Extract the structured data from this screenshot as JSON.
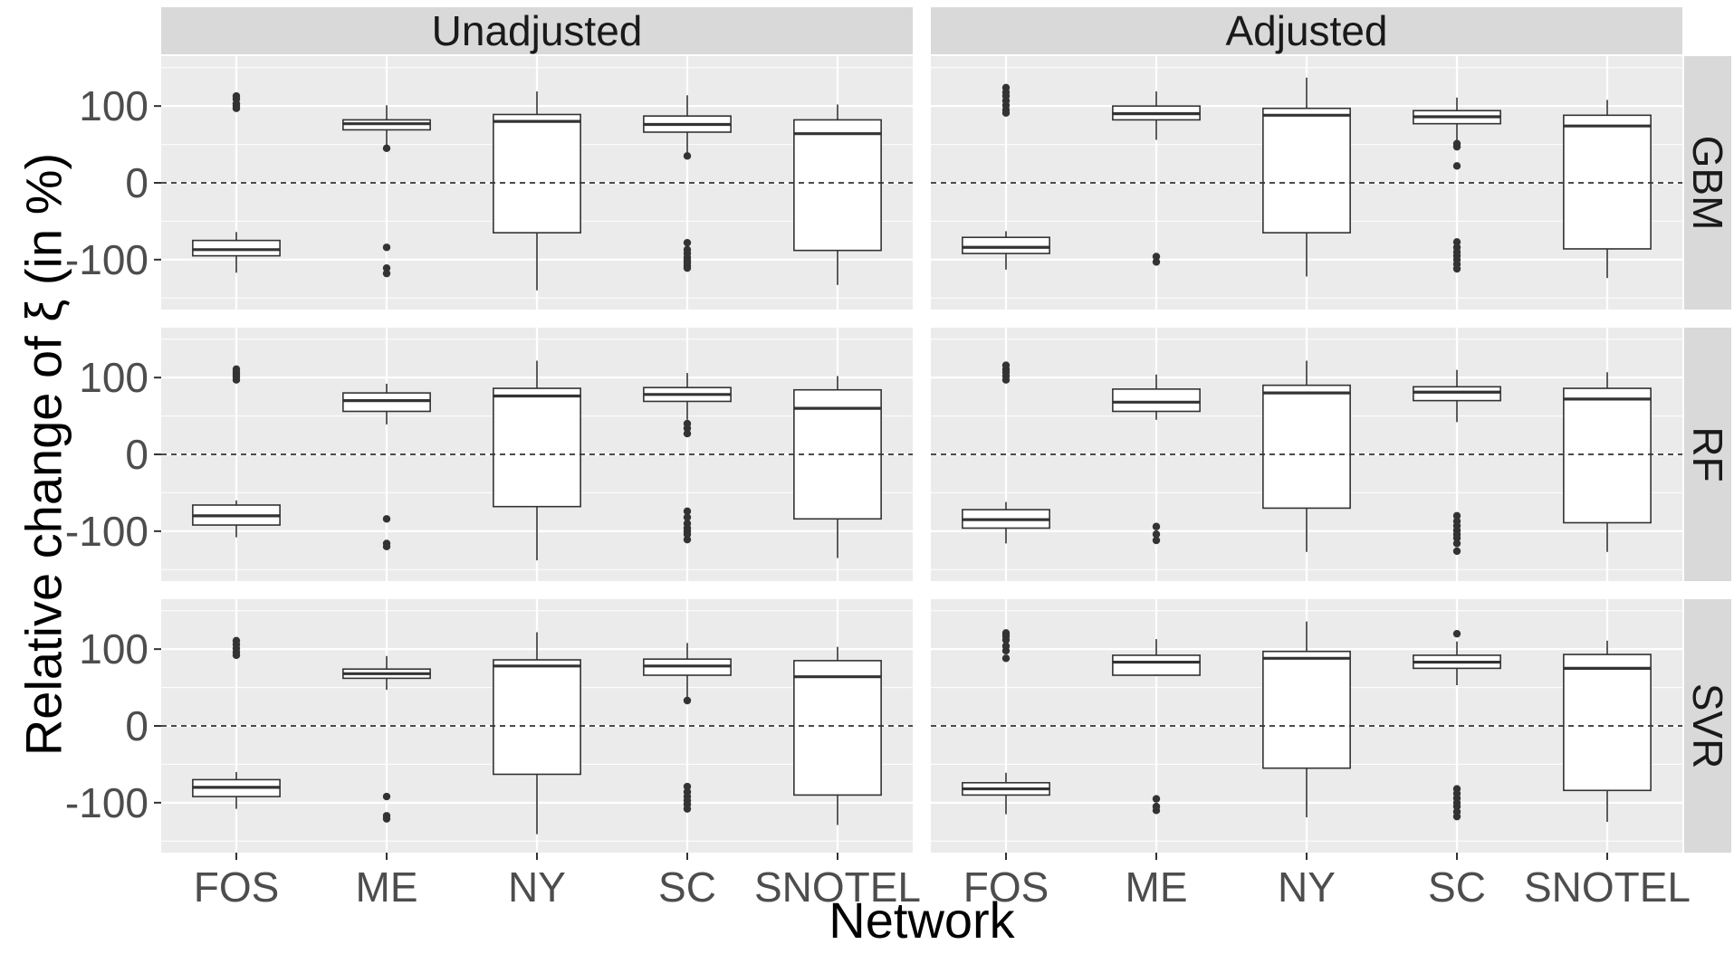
{
  "chart_data": {
    "type": "boxplot",
    "xlabel": "Network",
    "ylabel": "Relative change of ξ (in %)",
    "y_ticks": [
      -100,
      0,
      100
    ],
    "ylim": [
      -165,
      165
    ],
    "reference_line": 0,
    "categories": [
      "FOS",
      "ME",
      "NY",
      "SC",
      "SNOTEL"
    ],
    "column_facets": [
      "Unadjusted",
      "Adjusted"
    ],
    "row_facets": [
      "GBM",
      "RF",
      "SVR"
    ],
    "colors": {
      "panel_bg": "#ebebeb",
      "strip_bg": "#d9d9d9",
      "grid": "#ffffff",
      "box_fill": "#ffffff",
      "box_line": "#333333",
      "outlier": "#333333"
    },
    "panels": [
      {
        "row": "GBM",
        "col": "Unadjusted",
        "boxes": [
          {
            "category": "FOS",
            "lower_whisker": -117,
            "q1": -95,
            "median": -87,
            "q3": -75,
            "upper_whisker": -64,
            "outliers": [
              97,
              100,
              103,
              109,
              113
            ]
          },
          {
            "category": "ME",
            "lower_whisker": 48,
            "q1": 69,
            "median": 77,
            "q3": 82,
            "upper_whisker": 101,
            "outliers": [
              45,
              -84,
              -111,
              -118
            ]
          },
          {
            "category": "NY",
            "lower_whisker": -140,
            "q1": -65,
            "median": 80,
            "q3": 89,
            "upper_whisker": 119,
            "outliers": []
          },
          {
            "category": "SC",
            "lower_whisker": 38,
            "q1": 66,
            "median": 76,
            "q3": 87,
            "upper_whisker": 114,
            "outliers": [
              35,
              -78,
              -87,
              -92,
              -97,
              -101,
              -104,
              -108,
              -111
            ]
          },
          {
            "category": "SNOTEL",
            "lower_whisker": -133,
            "q1": -88,
            "median": 64,
            "q3": 82,
            "upper_whisker": 102,
            "outliers": []
          }
        ]
      },
      {
        "row": "GBM",
        "col": "Adjusted",
        "boxes": [
          {
            "category": "FOS",
            "lower_whisker": -113,
            "q1": -92,
            "median": -84,
            "q3": -71,
            "upper_whisker": -63,
            "outliers": [
              91,
              95,
              101,
              107,
              113,
              118,
              124
            ]
          },
          {
            "category": "ME",
            "lower_whisker": 56,
            "q1": 82,
            "median": 90,
            "q3": 100,
            "upper_whisker": 119,
            "outliers": [
              -96,
              -103
            ]
          },
          {
            "category": "NY",
            "lower_whisker": -122,
            "q1": -65,
            "median": 88,
            "q3": 97,
            "upper_whisker": 137,
            "outliers": []
          },
          {
            "category": "SC",
            "lower_whisker": 55,
            "q1": 77,
            "median": 86,
            "q3": 94,
            "upper_whisker": 111,
            "outliers": [
              51,
              47,
              22,
              -77,
              -84,
              -90,
              -95,
              -100,
              -106,
              -112
            ]
          },
          {
            "category": "SNOTEL",
            "lower_whisker": -124,
            "q1": -86,
            "median": 74,
            "q3": 88,
            "upper_whisker": 108,
            "outliers": []
          }
        ]
      },
      {
        "row": "RF",
        "col": "Unadjusted",
        "boxes": [
          {
            "category": "FOS",
            "lower_whisker": -108,
            "q1": -92,
            "median": -80,
            "q3": -66,
            "upper_whisker": -60,
            "outliers": [
              97,
              101,
              104,
              107,
              111
            ]
          },
          {
            "category": "ME",
            "lower_whisker": 39,
            "q1": 56,
            "median": 70,
            "q3": 80,
            "upper_whisker": 92,
            "outliers": [
              -84,
              -116,
              -120
            ]
          },
          {
            "category": "NY",
            "lower_whisker": -138,
            "q1": -68,
            "median": 76,
            "q3": 86,
            "upper_whisker": 122,
            "outliers": []
          },
          {
            "category": "SC",
            "lower_whisker": 45,
            "q1": 69,
            "median": 78,
            "q3": 87,
            "upper_whisker": 106,
            "outliers": [
              40,
              34,
              27,
              -74,
              -82,
              -90,
              -96,
              -100,
              -104,
              -111
            ]
          },
          {
            "category": "SNOTEL",
            "lower_whisker": -135,
            "q1": -84,
            "median": 60,
            "q3": 84,
            "upper_whisker": 102,
            "outliers": []
          }
        ]
      },
      {
        "row": "RF",
        "col": "Adjusted",
        "boxes": [
          {
            "category": "FOS",
            "lower_whisker": -116,
            "q1": -96,
            "median": -85,
            "q3": -72,
            "upper_whisker": -62,
            "outliers": [
              97,
              102,
              107,
              111,
              116
            ]
          },
          {
            "category": "ME",
            "lower_whisker": 45,
            "q1": 56,
            "median": 68,
            "q3": 85,
            "upper_whisker": 104,
            "outliers": [
              -94,
              -104,
              -112
            ]
          },
          {
            "category": "NY",
            "lower_whisker": -127,
            "q1": -70,
            "median": 80,
            "q3": 90,
            "upper_whisker": 122,
            "outliers": []
          },
          {
            "category": "SC",
            "lower_whisker": 42,
            "q1": 70,
            "median": 81,
            "q3": 88,
            "upper_whisker": 110,
            "outliers": [
              -80,
              -87,
              -93,
              -99,
              -104,
              -109,
              -116,
              -126
            ]
          },
          {
            "category": "SNOTEL",
            "lower_whisker": -127,
            "q1": -89,
            "median": 72,
            "q3": 86,
            "upper_whisker": 107,
            "outliers": []
          }
        ]
      },
      {
        "row": "SVR",
        "col": "Unadjusted",
        "boxes": [
          {
            "category": "FOS",
            "lower_whisker": -108,
            "q1": -92,
            "median": -80,
            "q3": -70,
            "upper_whisker": -60,
            "outliers": [
              92,
              96,
              101,
              106,
              111
            ]
          },
          {
            "category": "ME",
            "lower_whisker": 47,
            "q1": 62,
            "median": 68,
            "q3": 74,
            "upper_whisker": 91,
            "outliers": [
              -92,
              -117,
              -121
            ]
          },
          {
            "category": "NY",
            "lower_whisker": -141,
            "q1": -63,
            "median": 78,
            "q3": 86,
            "upper_whisker": 122,
            "outliers": []
          },
          {
            "category": "SC",
            "lower_whisker": 37,
            "q1": 66,
            "median": 78,
            "q3": 87,
            "upper_whisker": 108,
            "outliers": [
              33,
              -79,
              -86,
              -92,
              -97,
              -102,
              -108
            ]
          },
          {
            "category": "SNOTEL",
            "lower_whisker": -129,
            "q1": -90,
            "median": 64,
            "q3": 85,
            "upper_whisker": 103,
            "outliers": []
          }
        ]
      },
      {
        "row": "SVR",
        "col": "Adjusted",
        "boxes": [
          {
            "category": "FOS",
            "lower_whisker": -115,
            "q1": -90,
            "median": -82,
            "q3": -74,
            "upper_whisker": -61,
            "outliers": [
              88,
              98,
              104,
              112,
              117,
              121
            ]
          },
          {
            "category": "ME",
            "lower_whisker": 65,
            "q1": 66,
            "median": 83,
            "q3": 92,
            "upper_whisker": 113,
            "outliers": [
              -95,
              -105,
              -110
            ]
          },
          {
            "category": "NY",
            "lower_whisker": -119,
            "q1": -55,
            "median": 88,
            "q3": 97,
            "upper_whisker": 136,
            "outliers": []
          },
          {
            "category": "SC",
            "lower_whisker": 53,
            "q1": 75,
            "median": 83,
            "q3": 92,
            "upper_whisker": 110,
            "outliers": [
              120,
              -82,
              -88,
              -94,
              -100,
              -105,
              -112,
              -118
            ]
          },
          {
            "category": "SNOTEL",
            "lower_whisker": -125,
            "q1": -84,
            "median": 75,
            "q3": 93,
            "upper_whisker": 111,
            "outliers": []
          }
        ]
      }
    ]
  }
}
